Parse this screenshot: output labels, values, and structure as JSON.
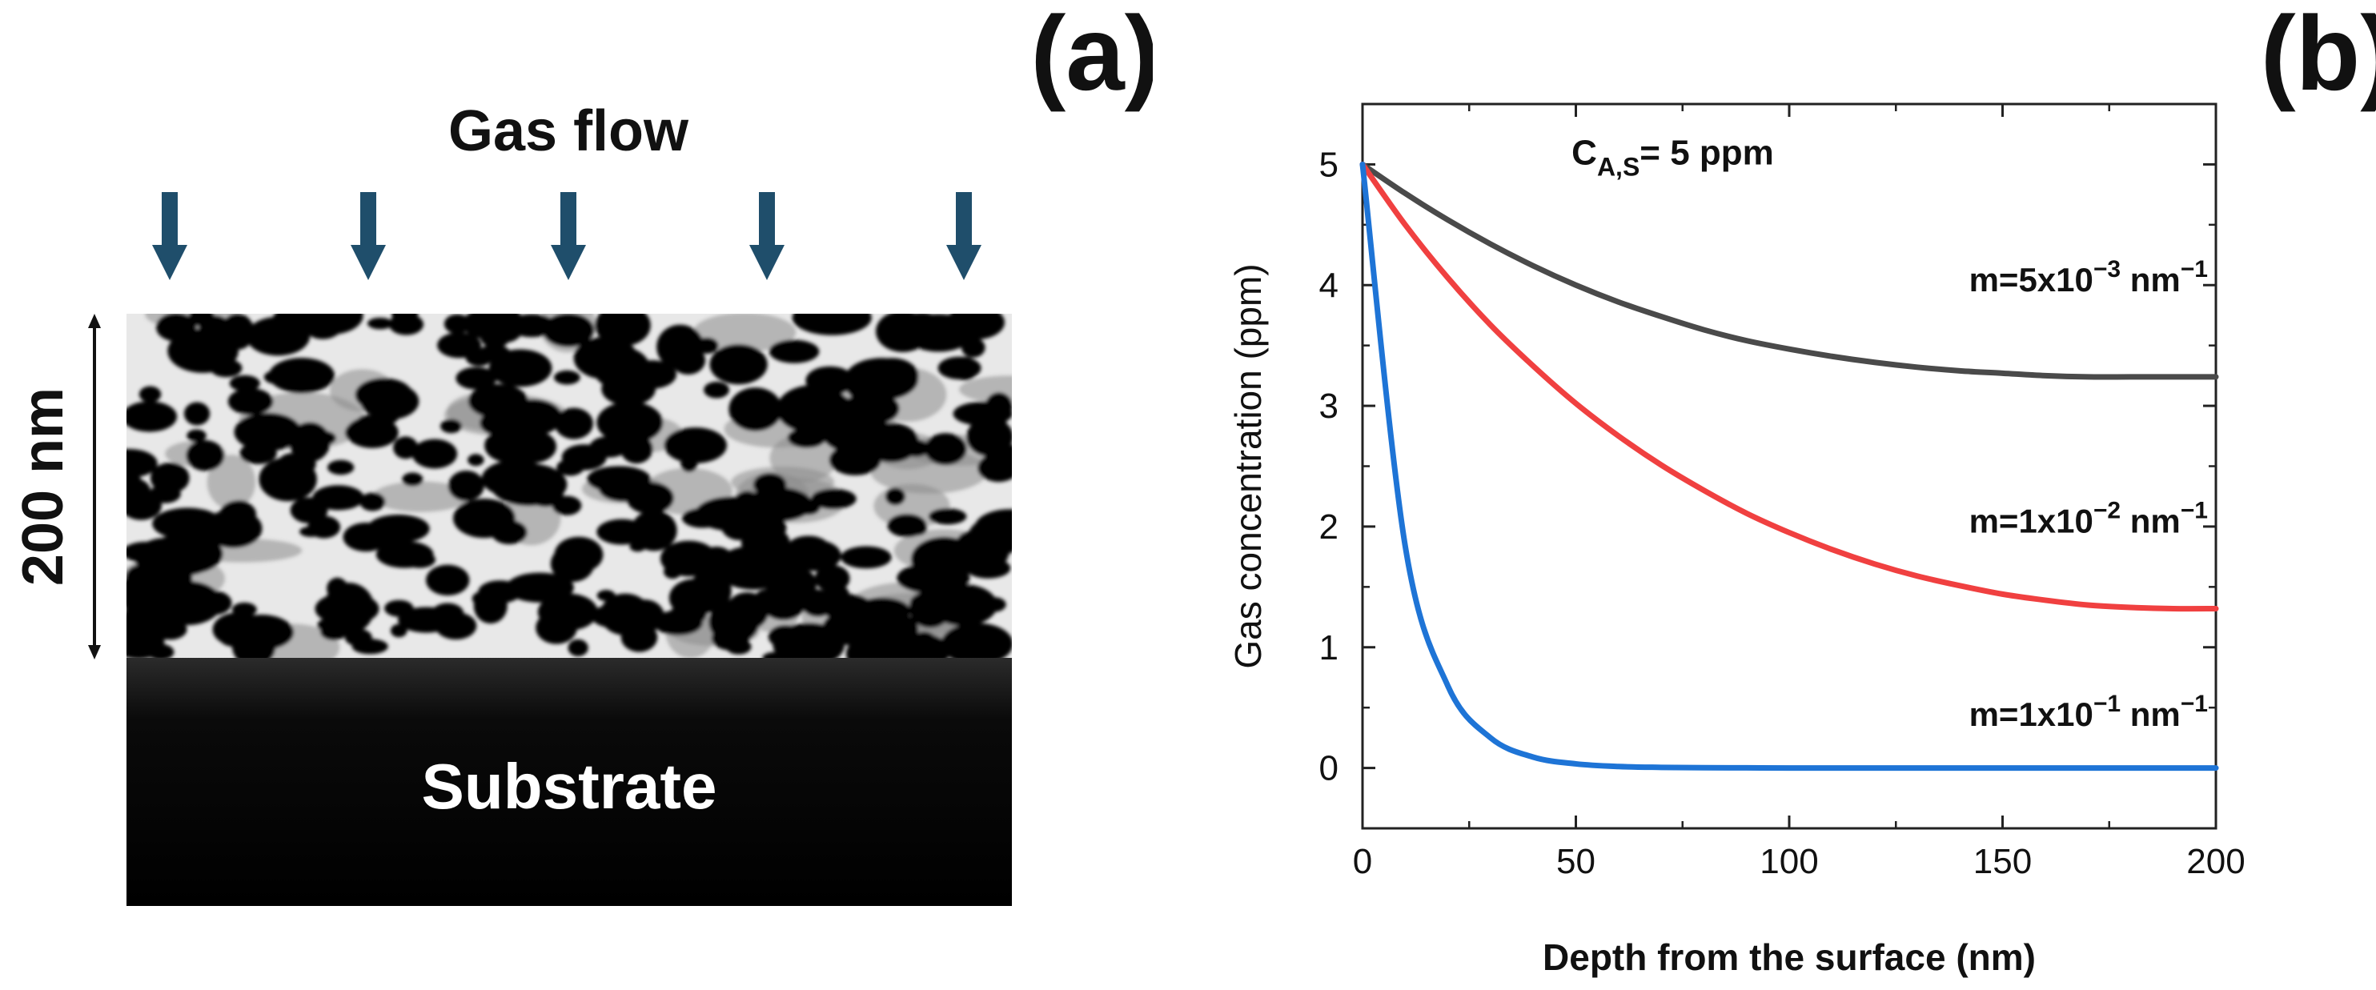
{
  "panel_a": {
    "label": "(a)",
    "gas_flow_label": "Gas flow",
    "thickness_label": "200 nm",
    "substrate_label": "Substrate",
    "arrow_color": "#1f4e6b",
    "arrow_count": 5
  },
  "panel_b": {
    "label": "(b)"
  },
  "chart_data": {
    "type": "line",
    "title": "",
    "annotation": {
      "prefix": "C",
      "subscript": "A,S",
      "suffix": "= 5 ppm"
    },
    "xlabel": "Depth from the surface (nm)",
    "ylabel": "Gas concentration (ppm)",
    "xlim": [
      0,
      200
    ],
    "ylim": [
      -0.5,
      5.5
    ],
    "xticks": [
      0,
      50,
      100,
      150,
      200
    ],
    "yticks": [
      0,
      1,
      2,
      3,
      4,
      5
    ],
    "grid": false,
    "x": [
      0,
      10,
      20,
      30,
      40,
      50,
      60,
      70,
      80,
      90,
      100,
      110,
      120,
      130,
      140,
      150,
      160,
      170,
      180,
      190,
      200
    ],
    "series": [
      {
        "name": "m=5x10^-3 nm^-1",
        "label_main": "m=5x10",
        "label_exp": "−3",
        "label_unit": " nm",
        "label_unit_exp": "−1",
        "color": "#4a4a4a",
        "values": [
          5.0,
          4.76,
          4.54,
          4.34,
          4.16,
          4.0,
          3.86,
          3.74,
          3.63,
          3.54,
          3.47,
          3.41,
          3.36,
          3.32,
          3.29,
          3.27,
          3.25,
          3.24,
          3.24,
          3.24,
          3.24
        ]
      },
      {
        "name": "m=1x10^-2 nm^-1",
        "label_main": "m=1x10",
        "label_exp": "−2",
        "label_unit": " nm",
        "label_unit_exp": "−1",
        "color": "#f04040",
        "values": [
          5.0,
          4.5,
          4.06,
          3.67,
          3.33,
          3.02,
          2.75,
          2.51,
          2.3,
          2.11,
          1.95,
          1.81,
          1.69,
          1.59,
          1.51,
          1.44,
          1.39,
          1.35,
          1.33,
          1.32,
          1.32
        ]
      },
      {
        "name": "m=1x10^-1 nm^-1",
        "label_main": "m=1x10",
        "label_exp": "−1",
        "label_unit": " nm",
        "label_unit_exp": "−1",
        "color": "#1e74d6",
        "values": [
          5.0,
          1.84,
          0.68,
          0.25,
          0.09,
          0.034,
          0.012,
          0.005,
          0.002,
          0.001,
          0.0,
          0.0,
          0.0,
          0.0,
          0.0,
          0.0,
          0.0,
          0.0,
          0.0,
          0.0,
          0.0
        ]
      }
    ]
  }
}
